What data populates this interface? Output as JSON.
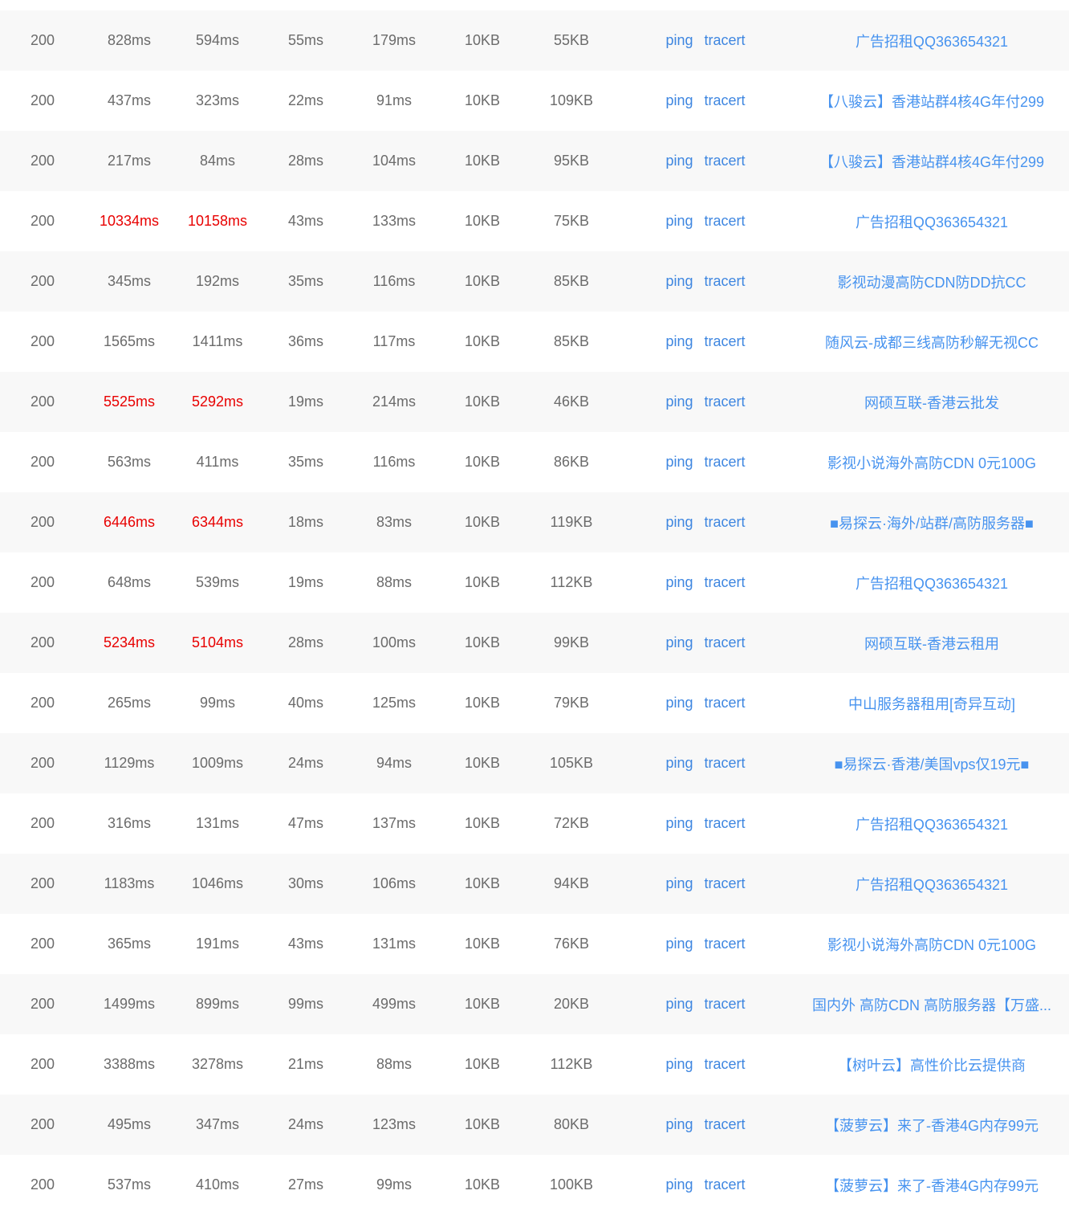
{
  "colors": {
    "row_alt_bg": "#f8f8f8",
    "text_gray": "#6b6b6b",
    "slow_red": "#e80000",
    "tool_link_blue": "#3e86e0",
    "ad_link_blue": "#4793ef"
  },
  "tools": {
    "ping_label": "ping",
    "tracert_label": "tracert"
  },
  "table": {
    "rows": [
      {
        "status": "200",
        "t1": "828ms",
        "t2": "594ms",
        "t3": "55ms",
        "t4": "179ms",
        "s1": "10KB",
        "s2": "55KB",
        "ad": "广告招租QQ363654321",
        "slow": false
      },
      {
        "status": "200",
        "t1": "437ms",
        "t2": "323ms",
        "t3": "22ms",
        "t4": "91ms",
        "s1": "10KB",
        "s2": "109KB",
        "ad": "【八骏云】香港站群4核4G年付299",
        "slow": false
      },
      {
        "status": "200",
        "t1": "217ms",
        "t2": "84ms",
        "t3": "28ms",
        "t4": "104ms",
        "s1": "10KB",
        "s2": "95KB",
        "ad": "【八骏云】香港站群4核4G年付299",
        "slow": false
      },
      {
        "status": "200",
        "t1": "10334ms",
        "t2": "10158ms",
        "t3": "43ms",
        "t4": "133ms",
        "s1": "10KB",
        "s2": "75KB",
        "ad": "广告招租QQ363654321",
        "slow": true
      },
      {
        "status": "200",
        "t1": "345ms",
        "t2": "192ms",
        "t3": "35ms",
        "t4": "116ms",
        "s1": "10KB",
        "s2": "85KB",
        "ad": "影视动漫高防CDN防DD抗CC",
        "slow": false
      },
      {
        "status": "200",
        "t1": "1565ms",
        "t2": "1411ms",
        "t3": "36ms",
        "t4": "117ms",
        "s1": "10KB",
        "s2": "85KB",
        "ad": "随风云-成都三线高防秒解无视CC",
        "slow": false
      },
      {
        "status": "200",
        "t1": "5525ms",
        "t2": "5292ms",
        "t3": "19ms",
        "t4": "214ms",
        "s1": "10KB",
        "s2": "46KB",
        "ad": "网硕互联-香港云批发",
        "slow": true
      },
      {
        "status": "200",
        "t1": "563ms",
        "t2": "411ms",
        "t3": "35ms",
        "t4": "116ms",
        "s1": "10KB",
        "s2": "86KB",
        "ad": "影视小说海外高防CDN 0元100G",
        "slow": false
      },
      {
        "status": "200",
        "t1": "6446ms",
        "t2": "6344ms",
        "t3": "18ms",
        "t4": "83ms",
        "s1": "10KB",
        "s2": "119KB",
        "ad": "■易探云·海外/站群/高防服务器■",
        "slow": true
      },
      {
        "status": "200",
        "t1": "648ms",
        "t2": "539ms",
        "t3": "19ms",
        "t4": "88ms",
        "s1": "10KB",
        "s2": "112KB",
        "ad": "广告招租QQ363654321",
        "slow": false
      },
      {
        "status": "200",
        "t1": "5234ms",
        "t2": "5104ms",
        "t3": "28ms",
        "t4": "100ms",
        "s1": "10KB",
        "s2": "99KB",
        "ad": "网硕互联-香港云租用",
        "slow": true
      },
      {
        "status": "200",
        "t1": "265ms",
        "t2": "99ms",
        "t3": "40ms",
        "t4": "125ms",
        "s1": "10KB",
        "s2": "79KB",
        "ad": "中山服务器租用[奇异互动]",
        "slow": false
      },
      {
        "status": "200",
        "t1": "1129ms",
        "t2": "1009ms",
        "t3": "24ms",
        "t4": "94ms",
        "s1": "10KB",
        "s2": "105KB",
        "ad": "■易探云·香港/美国vps仅19元■",
        "slow": false
      },
      {
        "status": "200",
        "t1": "316ms",
        "t2": "131ms",
        "t3": "47ms",
        "t4": "137ms",
        "s1": "10KB",
        "s2": "72KB",
        "ad": "广告招租QQ363654321",
        "slow": false
      },
      {
        "status": "200",
        "t1": "1183ms",
        "t2": "1046ms",
        "t3": "30ms",
        "t4": "106ms",
        "s1": "10KB",
        "s2": "94KB",
        "ad": "广告招租QQ363654321",
        "slow": false
      },
      {
        "status": "200",
        "t1": "365ms",
        "t2": "191ms",
        "t3": "43ms",
        "t4": "131ms",
        "s1": "10KB",
        "s2": "76KB",
        "ad": "影视小说海外高防CDN 0元100G",
        "slow": false
      },
      {
        "status": "200",
        "t1": "1499ms",
        "t2": "899ms",
        "t3": "99ms",
        "t4": "499ms",
        "s1": "10KB",
        "s2": "20KB",
        "ad": "国内外 高防CDN 高防服务器【万盛...",
        "slow": false
      },
      {
        "status": "200",
        "t1": "3388ms",
        "t2": "3278ms",
        "t3": "21ms",
        "t4": "88ms",
        "s1": "10KB",
        "s2": "112KB",
        "ad": "【树叶云】高性价比云提供商",
        "slow": false
      },
      {
        "status": "200",
        "t1": "495ms",
        "t2": "347ms",
        "t3": "24ms",
        "t4": "123ms",
        "s1": "10KB",
        "s2": "80KB",
        "ad": "【菠萝云】来了-香港4G内存99元",
        "slow": false
      },
      {
        "status": "200",
        "t1": "537ms",
        "t2": "410ms",
        "t3": "27ms",
        "t4": "99ms",
        "s1": "10KB",
        "s2": "100KB",
        "ad": "【菠萝云】来了-香港4G内存99元",
        "slow": false
      }
    ]
  }
}
